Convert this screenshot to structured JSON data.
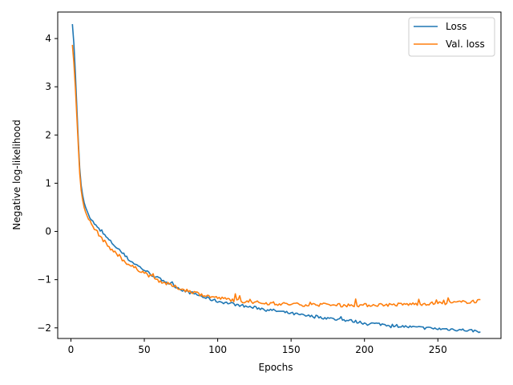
{
  "chart_data": {
    "type": "line",
    "title": "",
    "xlabel": "Epochs",
    "ylabel": "Negative log-likelihood",
    "xlim": [
      -9,
      293
    ],
    "ylim": [
      -2.22,
      4.55
    ],
    "xticks": [
      0,
      50,
      100,
      150,
      200,
      250
    ],
    "yticks": [
      -2,
      -1,
      0,
      1,
      2,
      3,
      4
    ],
    "grid": false,
    "legend": "top-right",
    "x_start": 1,
    "x_end": 279,
    "series": [
      {
        "name": "Loss",
        "color": "#1f77b4",
        "points": [
          [
            1,
            4.3
          ],
          [
            2,
            3.9
          ],
          [
            3,
            3.3
          ],
          [
            4,
            2.6
          ],
          [
            5,
            1.9
          ],
          [
            6,
            1.3
          ],
          [
            7,
            0.95
          ],
          [
            8,
            0.75
          ],
          [
            9,
            0.6
          ],
          [
            10,
            0.5
          ],
          [
            12,
            0.35
          ],
          [
            15,
            0.2
          ],
          [
            18,
            0.08
          ],
          [
            22,
            -0.05
          ],
          [
            26,
            -0.18
          ],
          [
            30,
            -0.3
          ],
          [
            35,
            -0.45
          ],
          [
            40,
            -0.6
          ],
          [
            45,
            -0.7
          ],
          [
            50,
            -0.8
          ],
          [
            55,
            -0.9
          ],
          [
            60,
            -0.98
          ],
          [
            65,
            -1.05
          ],
          [
            70,
            -1.12
          ],
          [
            75,
            -1.2
          ],
          [
            80,
            -1.26
          ],
          [
            85,
            -1.3
          ],
          [
            90,
            -1.36
          ],
          [
            100,
            -1.45
          ],
          [
            110,
            -1.5
          ],
          [
            120,
            -1.56
          ],
          [
            130,
            -1.6
          ],
          [
            140,
            -1.65
          ],
          [
            150,
            -1.7
          ],
          [
            160,
            -1.75
          ],
          [
            170,
            -1.78
          ],
          [
            180,
            -1.82
          ],
          [
            190,
            -1.85
          ],
          [
            200,
            -1.9
          ],
          [
            210,
            -1.92
          ],
          [
            220,
            -1.95
          ],
          [
            230,
            -1.98
          ],
          [
            240,
            -2.0
          ],
          [
            250,
            -2.02
          ],
          [
            260,
            -2.03
          ],
          [
            270,
            -2.05
          ],
          [
            279,
            -2.07
          ]
        ]
      },
      {
        "name": "Val. loss",
        "color": "#ff7f0e",
        "points": [
          [
            1,
            3.87
          ],
          [
            2,
            3.5
          ],
          [
            3,
            3.0
          ],
          [
            4,
            2.4
          ],
          [
            5,
            1.8
          ],
          [
            6,
            1.2
          ],
          [
            7,
            0.85
          ],
          [
            8,
            0.65
          ],
          [
            9,
            0.5
          ],
          [
            10,
            0.4
          ],
          [
            12,
            0.25
          ],
          [
            15,
            0.1
          ],
          [
            18,
            -0.02
          ],
          [
            22,
            -0.18
          ],
          [
            26,
            -0.32
          ],
          [
            30,
            -0.44
          ],
          [
            35,
            -0.58
          ],
          [
            40,
            -0.7
          ],
          [
            45,
            -0.78
          ],
          [
            50,
            -0.85
          ],
          [
            55,
            -0.95
          ],
          [
            60,
            -1.02
          ],
          [
            65,
            -1.08
          ],
          [
            70,
            -1.14
          ],
          [
            75,
            -1.19
          ],
          [
            80,
            -1.23
          ],
          [
            85,
            -1.27
          ],
          [
            90,
            -1.32
          ],
          [
            100,
            -1.38
          ],
          [
            110,
            -1.42
          ],
          [
            120,
            -1.46
          ],
          [
            130,
            -1.48
          ],
          [
            140,
            -1.5
          ],
          [
            150,
            -1.51
          ],
          [
            160,
            -1.52
          ],
          [
            170,
            -1.52
          ],
          [
            180,
            -1.53
          ],
          [
            190,
            -1.53
          ],
          [
            200,
            -1.53
          ],
          [
            210,
            -1.52
          ],
          [
            220,
            -1.52
          ],
          [
            230,
            -1.51
          ],
          [
            240,
            -1.5
          ],
          [
            250,
            -1.49
          ],
          [
            260,
            -1.48
          ],
          [
            270,
            -1.46
          ],
          [
            279,
            -1.44
          ]
        ]
      }
    ]
  }
}
